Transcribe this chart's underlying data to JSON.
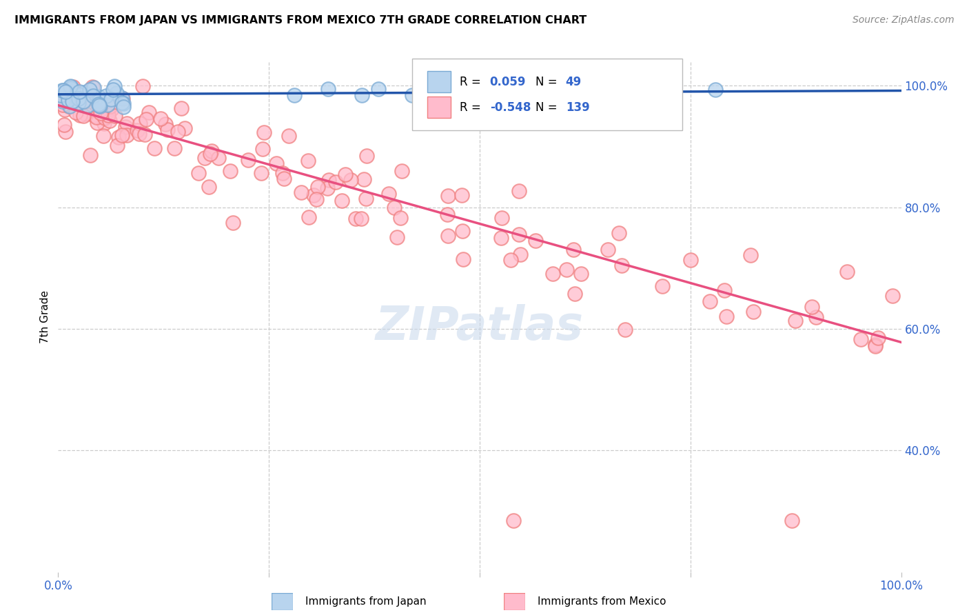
{
  "title": "IMMIGRANTS FROM JAPAN VS IMMIGRANTS FROM MEXICO 7TH GRADE CORRELATION CHART",
  "source": "Source: ZipAtlas.com",
  "ylabel": "7th Grade",
  "legend_japan": "Immigrants from Japan",
  "legend_mexico": "Immigrants from Mexico",
  "R_japan": 0.059,
  "N_japan": 49,
  "R_mexico": -0.548,
  "N_mexico": 139,
  "japan_color": "#7AAAD4",
  "japan_fill": "#B8D4EE",
  "mexico_color": "#F08080",
  "mexico_fill": "#FFBBCC",
  "trendline_japan_color": "#2255AA",
  "trendline_mexico_color": "#E85080",
  "background_color": "#FFFFFF",
  "xlim": [
    0.0,
    1.0
  ],
  "ylim": [
    0.2,
    1.04
  ],
  "y_ticks": [
    0.4,
    0.6,
    0.8,
    1.0
  ],
  "y_tick_labels": [
    "40.0%",
    "60.0%",
    "80.0%",
    "100.0%"
  ],
  "japan_trendline_x": [
    0.0,
    1.0
  ],
  "japan_trendline_y": [
    0.986,
    0.992
  ],
  "mexico_trendline_x": [
    0.0,
    1.0
  ],
  "mexico_trendline_y": [
    0.968,
    0.578
  ]
}
